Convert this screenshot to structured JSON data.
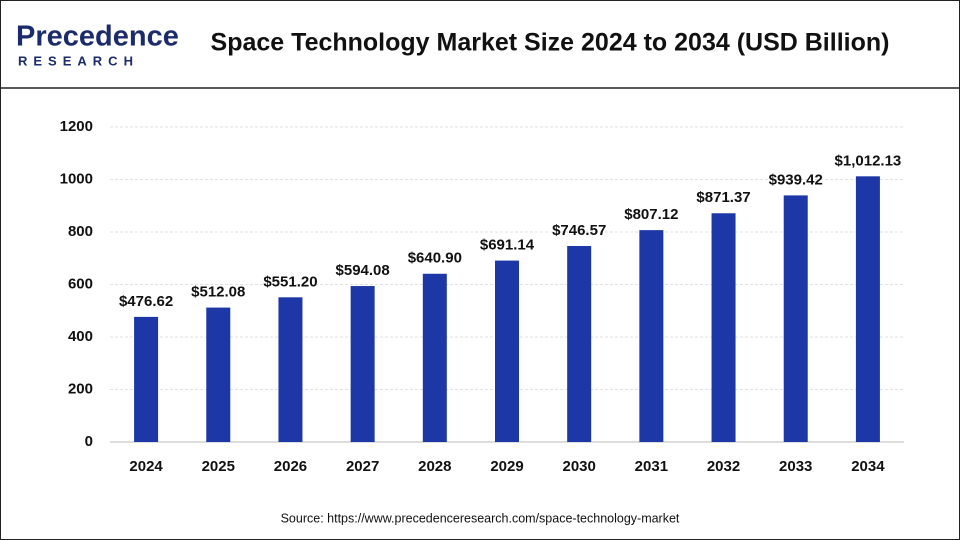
{
  "logo": {
    "name": "Precedence",
    "sub": "RESEARCH"
  },
  "chart_data": {
    "type": "bar",
    "title": "Space Technology Market Size 2024 to 2034 (USD Billion)",
    "categories": [
      "2024",
      "2025",
      "2026",
      "2027",
      "2028",
      "2029",
      "2030",
      "2031",
      "2032",
      "2033",
      "2034"
    ],
    "values": [
      476.62,
      512.08,
      551.2,
      594.08,
      640.9,
      691.14,
      746.57,
      807.12,
      871.37,
      939.42,
      1012.13
    ],
    "value_labels": [
      "$476.62",
      "$512.08",
      "$551.20",
      "$594.08",
      "$640.90",
      "$691.14",
      "$746.57",
      "$807.12",
      "$871.37",
      "$939.42",
      "$1,012.13"
    ],
    "color": "#1d37a6",
    "ylim": [
      0,
      1200
    ],
    "yticks": [
      0,
      200,
      400,
      600,
      800,
      1000,
      1200
    ],
    "grid": true,
    "source": "Source: https://www.precedenceresearch.com/space-technology-market"
  }
}
